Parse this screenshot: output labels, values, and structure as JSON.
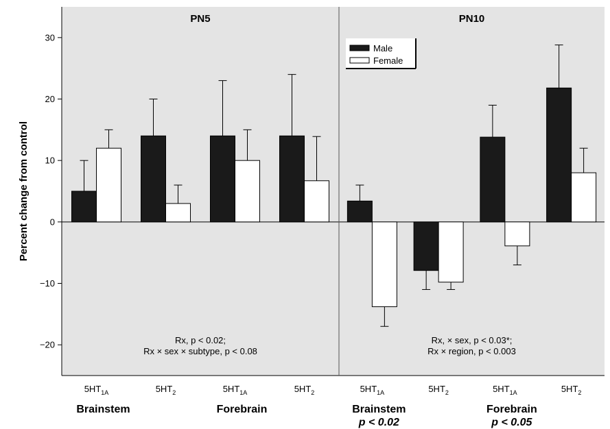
{
  "chart_data": {
    "type": "bar",
    "ylabel": "Percent change from control",
    "ylim": [
      -25,
      35
    ],
    "yticks": [
      -20,
      -10,
      0,
      10,
      20,
      30
    ],
    "legend": {
      "placement": "top-left of PN10 panel",
      "entries": [
        "Male",
        "Female"
      ]
    },
    "colors": {
      "Male": "#1a1a1a",
      "Female": "#ffffff",
      "panel_bg": "#e4e4e4"
    },
    "panels": [
      {
        "title": "PN5",
        "stats": [
          "Rx, p < 0.02;",
          "Rx × sex × subtype, p < 0.08"
        ],
        "groups": [
          {
            "sub_base": "5HT",
            "sub_script": "1A",
            "region": "Brainstem"
          },
          {
            "sub_base": "5HT",
            "sub_script": "2",
            "region": "Brainstem"
          },
          {
            "sub_base": "5HT",
            "sub_script": "1A",
            "region": "Forebrain"
          },
          {
            "sub_base": "5HT",
            "sub_script": "2",
            "region": "Forebrain"
          }
        ],
        "regions": [
          {
            "name": "Brainstem",
            "note": ""
          },
          {
            "name": "Forebrain",
            "note": ""
          }
        ],
        "series": [
          {
            "name": "Male",
            "values": [
              5,
              14,
              14,
              14
            ],
            "errors": [
              5,
              6,
              9,
              10
            ]
          },
          {
            "name": "Female",
            "values": [
              12,
              3,
              10,
              6.7
            ],
            "errors": [
              3,
              3,
              5,
              7.2
            ]
          }
        ]
      },
      {
        "title": "PN10",
        "stats": [
          "Rx, × sex, p < 0.03*;",
          "Rx × region, p < 0.003"
        ],
        "groups": [
          {
            "sub_base": "5HT",
            "sub_script": "1A",
            "region": "Brainstem"
          },
          {
            "sub_base": "5HT",
            "sub_script": "2",
            "region": "Brainstem"
          },
          {
            "sub_base": "5HT",
            "sub_script": "1A",
            "region": "Forebrain"
          },
          {
            "sub_base": "5HT",
            "sub_script": "2",
            "region": "Forebrain"
          }
        ],
        "regions": [
          {
            "name": "Brainstem",
            "note": "p < 0.02"
          },
          {
            "name": "Forebrain",
            "note": "p < 0.05"
          }
        ],
        "series": [
          {
            "name": "Male",
            "values": [
              3.4,
              -7.9,
              13.8,
              21.8
            ],
            "errors": [
              2.6,
              3.1,
              5.2,
              7
            ]
          },
          {
            "name": "Female",
            "values": [
              -13.8,
              -9.8,
              -3.9,
              8
            ],
            "errors": [
              3.2,
              1.2,
              3.1,
              4
            ]
          }
        ]
      }
    ]
  }
}
